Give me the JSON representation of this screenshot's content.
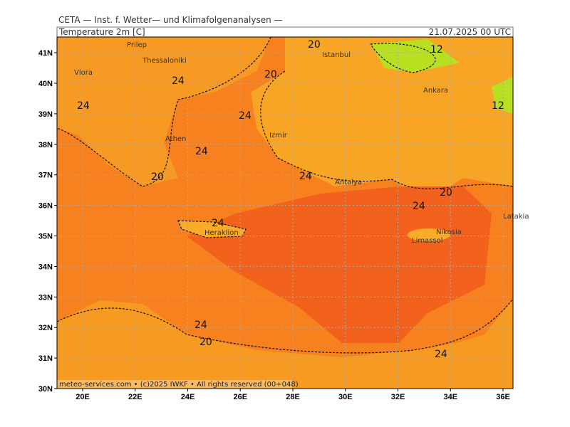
{
  "header": {
    "institute": "CETA — Inst. f. Wetter— und Klimafolgenanalysen —",
    "parameter": "Temperature 2m [C]",
    "valid_time": "21.07.2025 00 UTC"
  },
  "axes": {
    "lat": [
      {
        "value": 41,
        "label": "41N"
      },
      {
        "value": 40,
        "label": "40N"
      },
      {
        "value": 39,
        "label": "39N"
      },
      {
        "value": 38,
        "label": "38N"
      },
      {
        "value": 37,
        "label": "37N"
      },
      {
        "value": 36,
        "label": "36N"
      },
      {
        "value": 35,
        "label": "35N"
      },
      {
        "value": 34,
        "label": "34N"
      },
      {
        "value": 33,
        "label": "33N"
      },
      {
        "value": 32,
        "label": "32N"
      },
      {
        "value": 31,
        "label": "31N"
      },
      {
        "value": 30,
        "label": "30N"
      }
    ],
    "lon": [
      {
        "value": 20,
        "label": "20E"
      },
      {
        "value": 22,
        "label": "22E"
      },
      {
        "value": 24,
        "label": "24E"
      },
      {
        "value": 26,
        "label": "26E"
      },
      {
        "value": 28,
        "label": "28E"
      },
      {
        "value": 30,
        "label": "30E"
      },
      {
        "value": 32,
        "label": "32E"
      },
      {
        "value": 34,
        "label": "34E"
      },
      {
        "value": 36,
        "label": "36E"
      }
    ]
  },
  "cities": [
    "Prilep",
    "Thessaloniki",
    "Vlora",
    "Athen",
    "Izmir",
    "Istanbul",
    "Ankara",
    "Antalya",
    "Heraklion",
    "Nikosia",
    "Limassol",
    "Latakia"
  ],
  "contour_labels": [
    "20",
    "12",
    "20",
    "24",
    "24",
    "24",
    "12",
    "24",
    "20",
    "24",
    "20",
    "24",
    "24",
    "24",
    "20",
    "24"
  ],
  "footer": "meteo-services.com • (c)2025 IWKF • All rights reserved (00+048)"
}
